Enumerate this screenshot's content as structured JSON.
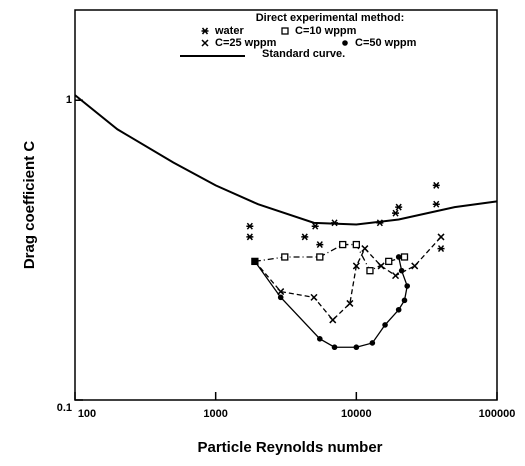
{
  "chart_data": {
    "type": "scatter",
    "xlabel": "Particle Reynolds number",
    "ylabel": "Drag coefficient   C",
    "legend_title": "Direct experimental method:",
    "xscale": "log",
    "yscale": "log",
    "xlim": [
      100,
      100000
    ],
    "ylim": [
      0.1,
      2
    ],
    "xticks": [
      100,
      1000,
      10000,
      100000
    ],
    "yticks": [
      0.1,
      1
    ],
    "legend": "upper right",
    "series": [
      {
        "name": "water",
        "color": "#000",
        "marker": "star",
        "line": "none",
        "x": [
          1750,
          1750,
          4300,
          5100,
          5500,
          7000,
          14700,
          19000,
          20000,
          37000,
          37000,
          40000
        ],
        "values": [
          0.38,
          0.35,
          0.35,
          0.38,
          0.33,
          0.39,
          0.39,
          0.42,
          0.44,
          0.52,
          0.45,
          0.32
        ]
      },
      {
        "name": "C=10 wppm",
        "color": "#000",
        "marker": "square",
        "line": "dashdot",
        "x": [
          1900,
          3100,
          5500,
          8000,
          10000,
          12500,
          17000,
          22000
        ],
        "values": [
          0.29,
          0.3,
          0.3,
          0.33,
          0.33,
          0.27,
          0.29,
          0.3
        ]
      },
      {
        "name": "C=25 wppm",
        "color": "#000",
        "marker": "x",
        "line": "dashed",
        "x": [
          1900,
          2900,
          5000,
          6800,
          9000,
          10000,
          11500,
          15000,
          19000,
          26000,
          40000
        ],
        "values": [
          0.29,
          0.23,
          0.22,
          0.185,
          0.21,
          0.28,
          0.32,
          0.28,
          0.26,
          0.28,
          0.35
        ]
      },
      {
        "name": "C=50 wppm",
        "color": "#000",
        "marker": "circle",
        "line": "solid",
        "x": [
          1900,
          2900,
          5500,
          7000,
          10000,
          13000,
          16000,
          20000,
          22000,
          23000,
          21000,
          20000
        ],
        "values": [
          0.29,
          0.22,
          0.16,
          0.15,
          0.15,
          0.155,
          0.178,
          0.2,
          0.215,
          0.24,
          0.27,
          0.3
        ]
      },
      {
        "name": "Standard curve.",
        "color": "#000",
        "marker": "none",
        "line": "solid",
        "x": [
          100,
          200,
          500,
          1000,
          2000,
          5000,
          10000,
          20000,
          50000,
          100000
        ],
        "values": [
          1.04,
          0.8,
          0.62,
          0.52,
          0.45,
          0.39,
          0.385,
          0.4,
          0.44,
          0.46
        ]
      }
    ]
  }
}
